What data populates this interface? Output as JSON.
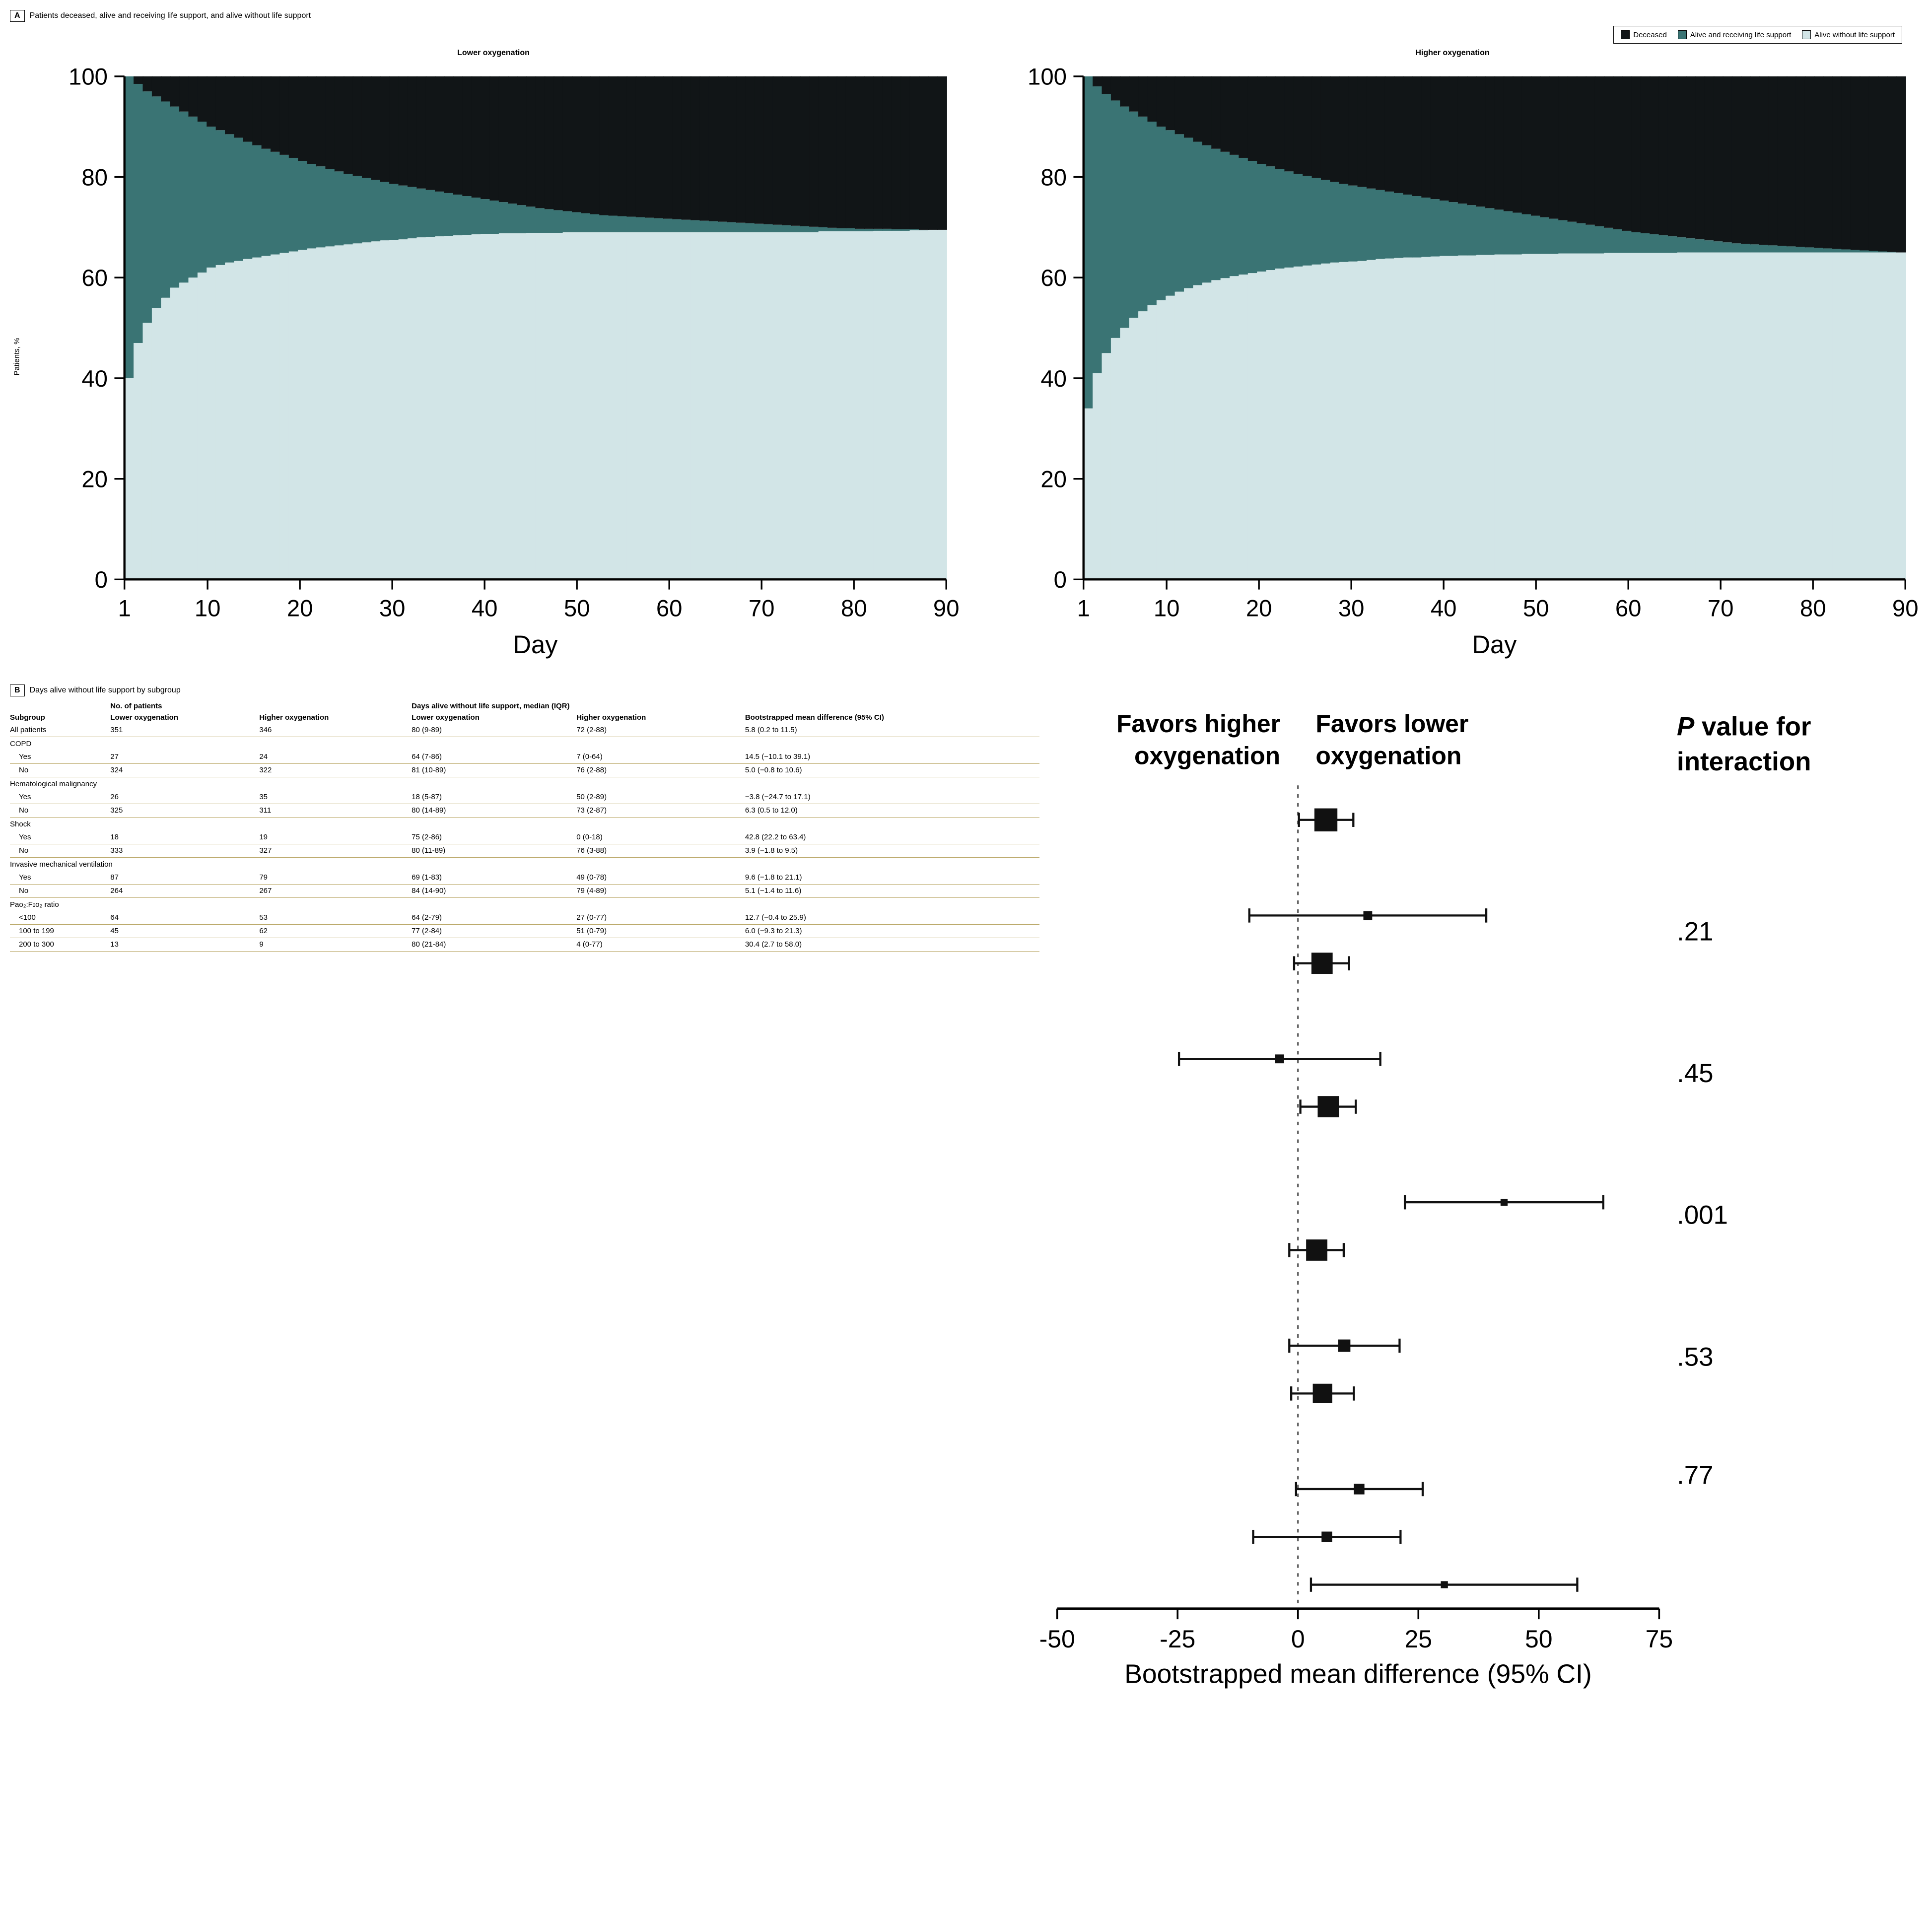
{
  "panelA": {
    "label": "A",
    "title": "Patients deceased, alive and receiving life support, and alive without life support",
    "legend": [
      {
        "label": "Deceased",
        "color": "#111517"
      },
      {
        "label": "Alive and receiving life support",
        "color": "#3a7474"
      },
      {
        "label": "Alive without life support",
        "color": "#d2e5e7"
      }
    ],
    "ylabel": "Patients, %",
    "xlabel": "Day",
    "ylim": [
      0,
      100
    ],
    "ytick_step": 20,
    "xlim": [
      1,
      90
    ],
    "xticks": [
      1,
      10,
      20,
      30,
      40,
      50,
      60,
      70,
      80,
      90
    ],
    "axis_color": "#000000",
    "label_fontsize": 15,
    "tick_fontsize": 14,
    "charts": [
      {
        "title": "Lower oxygenation",
        "alive_no_support_top": [
          40,
          47,
          51,
          54,
          56,
          58,
          59,
          60,
          61,
          62,
          62.5,
          63,
          63.3,
          63.7,
          64,
          64.3,
          64.6,
          64.9,
          65.2,
          65.5,
          65.8,
          66,
          66.2,
          66.4,
          66.6,
          66.8,
          67,
          67.2,
          67.4,
          67.5,
          67.6,
          67.8,
          68,
          68.1,
          68.2,
          68.3,
          68.4,
          68.5,
          68.6,
          68.7,
          68.7,
          68.8,
          68.8,
          68.8,
          68.9,
          68.9,
          68.9,
          68.9,
          69,
          69,
          69,
          69,
          69,
          69,
          69,
          69,
          69,
          69,
          69,
          69,
          69,
          69,
          69,
          69,
          69,
          69,
          69,
          69,
          69,
          69,
          69,
          69,
          69,
          69,
          69,
          69,
          69.2,
          69.2,
          69.2,
          69.2,
          69.2,
          69.2,
          69.3,
          69.3,
          69.3,
          69.3,
          69.4,
          69.4,
          69.5,
          69.5
        ],
        "alive_support_top": [
          100,
          98.5,
          97,
          96,
          95,
          94,
          93,
          92,
          91,
          90,
          89.3,
          88.5,
          87.8,
          87,
          86.3,
          85.6,
          85,
          84.4,
          83.8,
          83.2,
          82.6,
          82.1,
          81.6,
          81.1,
          80.6,
          80.2,
          79.8,
          79.4,
          79,
          78.6,
          78.3,
          78,
          77.7,
          77.4,
          77.1,
          76.8,
          76.5,
          76.2,
          75.9,
          75.6,
          75.3,
          75,
          74.7,
          74.4,
          74.1,
          73.8,
          73.6,
          73.4,
          73.2,
          73,
          72.8,
          72.6,
          72.4,
          72.3,
          72.2,
          72.1,
          72,
          71.9,
          71.8,
          71.7,
          71.6,
          71.5,
          71.4,
          71.3,
          71.2,
          71.1,
          71,
          70.9,
          70.8,
          70.7,
          70.6,
          70.5,
          70.4,
          70.3,
          70.2,
          70.1,
          70,
          69.9,
          69.8,
          69.8,
          69.7,
          69.7,
          69.7,
          69.7,
          69.6,
          69.6,
          69.6,
          69.5,
          69.5,
          69.5
        ]
      },
      {
        "title": "Higher oxygenation",
        "alive_no_support_top": [
          34,
          41,
          45,
          48,
          50,
          52,
          53.3,
          54.5,
          55.5,
          56.4,
          57.2,
          57.9,
          58.5,
          59,
          59.5,
          59.9,
          60.3,
          60.6,
          60.9,
          61.2,
          61.5,
          61.8,
          62,
          62.2,
          62.4,
          62.6,
          62.8,
          63,
          63.1,
          63.2,
          63.3,
          63.5,
          63.7,
          63.8,
          63.9,
          64,
          64,
          64.1,
          64.2,
          64.3,
          64.3,
          64.4,
          64.4,
          64.5,
          64.5,
          64.6,
          64.6,
          64.6,
          64.7,
          64.7,
          64.7,
          64.7,
          64.8,
          64.8,
          64.8,
          64.8,
          64.8,
          64.9,
          64.9,
          64.9,
          64.9,
          64.9,
          64.9,
          64.9,
          64.9,
          65,
          65,
          65,
          65,
          65,
          65,
          65,
          65,
          65,
          65,
          65,
          65,
          65,
          65,
          65,
          65,
          65,
          65,
          65,
          65,
          65,
          65,
          65,
          65,
          65
        ],
        "alive_support_top": [
          100,
          98,
          96.5,
          95.2,
          94,
          93,
          92,
          91,
          90,
          89.3,
          88.5,
          87.8,
          87,
          86.3,
          85.6,
          85,
          84.4,
          83.8,
          83.2,
          82.6,
          82.1,
          81.6,
          81.1,
          80.6,
          80.2,
          79.8,
          79.4,
          79,
          78.6,
          78.3,
          78,
          77.7,
          77.4,
          77.1,
          76.8,
          76.5,
          76.2,
          75.9,
          75.6,
          75.3,
          75,
          74.7,
          74.4,
          74.1,
          73.8,
          73.5,
          73.2,
          72.9,
          72.6,
          72.3,
          72,
          71.7,
          71.4,
          71.1,
          70.8,
          70.5,
          70.2,
          69.9,
          69.6,
          69.3,
          69,
          68.8,
          68.6,
          68.4,
          68.2,
          68,
          67.8,
          67.6,
          67.4,
          67.2,
          67,
          66.8,
          66.7,
          66.6,
          66.5,
          66.4,
          66.3,
          66.2,
          66.1,
          66,
          65.9,
          65.8,
          65.7,
          65.6,
          65.5,
          65.4,
          65.3,
          65.2,
          65.1,
          65
        ]
      }
    ]
  },
  "panelB": {
    "label": "B",
    "title": "Days alive without life support by subgroup",
    "tableHeaders": {
      "subgroup": "Subgroup",
      "nPatients": "No. of patients",
      "daysAlive": "Days alive without life support, median (IQR)",
      "lower": "Lower oxygenation",
      "higher": "Higher oxygenation",
      "bootMean": "Bootstrapped mean difference (95% CI)"
    },
    "forestHeaders": {
      "favorsHigher": "Favors higher oxygenation",
      "favorsLower": "Favors lower oxygenation",
      "xlabel": "Bootstrapped mean difference (95% CI)",
      "pHeader": "P value for interaction"
    },
    "forestAxis": {
      "xlim": [
        -50,
        75
      ],
      "xticks": [
        -50,
        -25,
        0,
        25,
        50,
        75
      ],
      "zeroline_color": "#666666",
      "marker_color": "#111111"
    },
    "rows": [
      {
        "type": "data",
        "label": "All patients",
        "nLow": "351",
        "nHigh": "346",
        "dLow": "80 (9-89)",
        "dHigh": "72 (2-88)",
        "boot": "5.8 (0.2 to 11.5)",
        "pe": 5.8,
        "lo": 0.2,
        "hi": 11.5,
        "size": 13
      },
      {
        "type": "group",
        "label": "COPD"
      },
      {
        "type": "data",
        "indent": true,
        "label": "Yes",
        "nLow": "27",
        "nHigh": "24",
        "dLow": "64 (7-86)",
        "dHigh": "7 (0-64)",
        "boot": "14.5 (−10.1 to 39.1)",
        "pe": 14.5,
        "lo": -10.1,
        "hi": 39.1,
        "size": 5
      },
      {
        "type": "data",
        "indent": true,
        "label": "No",
        "nLow": "324",
        "nHigh": "322",
        "dLow": "81 (10-89)",
        "dHigh": "76 (2-88)",
        "boot": "5.0 (−0.8 to 10.6)",
        "pe": 5.0,
        "lo": -0.8,
        "hi": 10.6,
        "size": 12,
        "p": ".21",
        "pSpan": 2
      },
      {
        "type": "group",
        "label": "Hematological malignancy"
      },
      {
        "type": "data",
        "indent": true,
        "label": "Yes",
        "nLow": "26",
        "nHigh": "35",
        "dLow": "18 (5-87)",
        "dHigh": "50 (2-89)",
        "boot": "−3.8 (−24.7 to 17.1)",
        "pe": -3.8,
        "lo": -24.7,
        "hi": 17.1,
        "size": 5
      },
      {
        "type": "data",
        "indent": true,
        "label": "No",
        "nLow": "325",
        "nHigh": "311",
        "dLow": "80 (14-89)",
        "dHigh": "73 (2-87)",
        "boot": "6.3 (0.5 to 12.0)",
        "pe": 6.3,
        "lo": 0.5,
        "hi": 12.0,
        "size": 12,
        "p": ".45",
        "pSpan": 2
      },
      {
        "type": "group",
        "label": "Shock"
      },
      {
        "type": "data",
        "indent": true,
        "label": "Yes",
        "nLow": "18",
        "nHigh": "19",
        "dLow": "75 (2-86)",
        "dHigh": "0 (0-18)",
        "boot": "42.8 (22.2 to  63.4)",
        "pe": 42.8,
        "lo": 22.2,
        "hi": 63.4,
        "size": 4
      },
      {
        "type": "data",
        "indent": true,
        "label": "No",
        "nLow": "333",
        "nHigh": "327",
        "dLow": "80 (11-89)",
        "dHigh": "76 (3-88)",
        "boot": "3.9 (−1.8 to 9.5)",
        "pe": 3.9,
        "lo": -1.8,
        "hi": 9.5,
        "size": 12,
        "p": ".001",
        "pSpan": 2
      },
      {
        "type": "group",
        "label": "Invasive mechanical ventilation"
      },
      {
        "type": "data",
        "indent": true,
        "label": "Yes",
        "nLow": "87",
        "nHigh": "79",
        "dLow": "69 (1-83)",
        "dHigh": "49 (0-78)",
        "boot": "9.6 (−1.8 to 21.1)",
        "pe": 9.6,
        "lo": -1.8,
        "hi": 21.1,
        "size": 7
      },
      {
        "type": "data",
        "indent": true,
        "label": "No",
        "nLow": "264",
        "nHigh": "267",
        "dLow": "84 (14-90)",
        "dHigh": "79 (4-89)",
        "boot": "5.1 (−1.4 to 11.6)",
        "pe": 5.1,
        "lo": -1.4,
        "hi": 11.6,
        "size": 11,
        "p": ".53",
        "pSpan": 2
      },
      {
        "type": "group",
        "label": "Pao₂:Fɪo₂ ratio"
      },
      {
        "type": "data",
        "indent": true,
        "label": "<100",
        "nLow": "64",
        "nHigh": "53",
        "dLow": "64 (2-79)",
        "dHigh": "27 (0-77)",
        "boot": "12.7 (−0.4 to 25.9)",
        "pe": 12.7,
        "lo": -0.4,
        "hi": 25.9,
        "size": 6
      },
      {
        "type": "data",
        "indent": true,
        "label": "100 to 199",
        "nLow": "45",
        "nHigh": "62",
        "dLow": "77 (2-84)",
        "dHigh": "51 (0-79)",
        "boot": "6.0 (−9.3 to 21.3)",
        "pe": 6.0,
        "lo": -9.3,
        "hi": 21.3,
        "size": 6,
        "p": ".77",
        "pSpan": 3
      },
      {
        "type": "data",
        "indent": true,
        "label": "200 to 300",
        "nLow": "13",
        "nHigh": "9",
        "dLow": "80 (21-84)",
        "dHigh": "4 (0-77)",
        "boot": "30.4 (2.7 to 58.0)",
        "pe": 30.4,
        "lo": 2.7,
        "hi": 58.0,
        "size": 4
      }
    ]
  }
}
